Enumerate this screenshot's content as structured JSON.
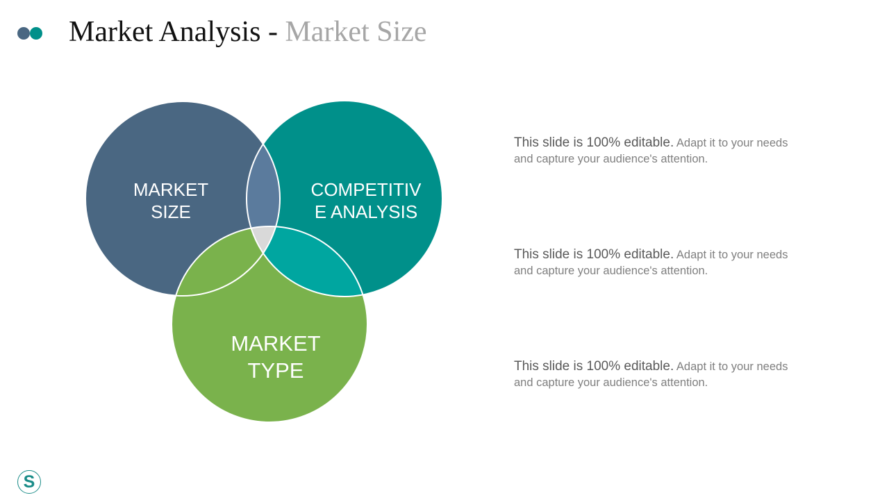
{
  "header": {
    "title_main": "Market Analysis - ",
    "title_sub": "Market Size",
    "dot_colors": [
      "#4a6782",
      "#00908a"
    ]
  },
  "diagram": {
    "type": "venn",
    "circles": [
      {
        "label": "MARKET SIZE",
        "line1": "MARKET",
        "line2": "SIZE",
        "color": "#4a6782"
      },
      {
        "label": "COMPETITIVE ANALYSIS",
        "line1": "COMPETITIV",
        "line2": "E ANALYSIS",
        "color": "#00908a"
      },
      {
        "label": "MARKET TYPE",
        "line1": "MARKET",
        "line2": "TYPE",
        "color": "#7ab24c"
      }
    ],
    "overlap_colors": {
      "size_competitive": "#5b7b9d",
      "competitive_type": "#00a6a0",
      "size_type": "#7ab24c",
      "center": "#d9d9d9"
    }
  },
  "descriptions": [
    {
      "lead": "This slide is 100% editable.",
      "rest": " Adapt it to your needs and capture your audience's attention."
    },
    {
      "lead": "This slide is 100% editable.",
      "rest": " Adapt it to your needs and capture your audience's attention."
    },
    {
      "lead": "This slide is 100% editable.",
      "rest": " Adapt it to your needs and capture your audience's attention."
    }
  ],
  "logo": {
    "letter": "S",
    "color": "#1a8c88"
  }
}
